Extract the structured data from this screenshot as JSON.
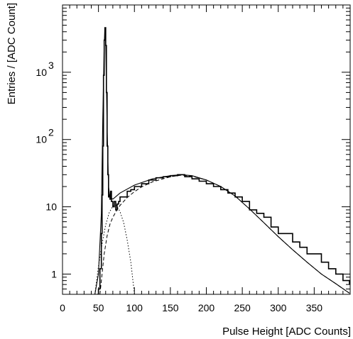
{
  "chart_data": {
    "type": "line",
    "title": "",
    "xlabel": "Pulse Height [ADC Counts]",
    "ylabel": "Entries / [ADC Count]",
    "xlim": [
      0,
      400
    ],
    "ylim": [
      0.5,
      10000
    ],
    "yscale": "log",
    "grid": false,
    "x_ticks": [
      0,
      50,
      100,
      150,
      200,
      250,
      300,
      350
    ],
    "x_tick_labels": [
      "0",
      "50",
      "100",
      "150",
      "200",
      "250",
      "300",
      "350"
    ],
    "y_ticks": [
      1,
      10,
      100,
      1000
    ],
    "y_tick_labels": [
      {
        "base": "1",
        "exp": ""
      },
      {
        "base": "10",
        "exp": ""
      },
      {
        "base": "10",
        "exp": "2"
      },
      {
        "base": "10",
        "exp": "3"
      }
    ],
    "series": [
      {
        "style": "histogram",
        "x": [
          48,
          50,
          52,
          54,
          55,
          56,
          57,
          58,
          59,
          60,
          61,
          62,
          63,
          64,
          65,
          66,
          67,
          68,
          70,
          72,
          74,
          76,
          78,
          80,
          85,
          90,
          95,
          100,
          110,
          120,
          130,
          140,
          150,
          160,
          170,
          180,
          190,
          200,
          210,
          220,
          230,
          240,
          250,
          260,
          270,
          280,
          290,
          300,
          310,
          320,
          330,
          340,
          350,
          360,
          370,
          380,
          390,
          399
        ],
        "y": [
          0.5,
          0.6,
          1.2,
          4,
          15,
          80,
          900,
          3000,
          4600,
          2500,
          500,
          80,
          30,
          14,
          15,
          13,
          17,
          12,
          10,
          12,
          9,
          11,
          12,
          14,
          14,
          17,
          18,
          20,
          22,
          25,
          27,
          28,
          29,
          30,
          28,
          26,
          24,
          22,
          20,
          18,
          16,
          14,
          12,
          9,
          8,
          7,
          5,
          4,
          4,
          3,
          2.5,
          2,
          2,
          1.5,
          1.2,
          1,
          0.8,
          0.7
        ]
      },
      {
        "style": "solid",
        "x": [
          45,
          50,
          54,
          56,
          58,
          59,
          60,
          61,
          62,
          64,
          66,
          70,
          80,
          100,
          125,
          150,
          165,
          180,
          200,
          220,
          240,
          260,
          280,
          300,
          320,
          340,
          360,
          380,
          399
        ],
        "y": [
          0.5,
          1,
          8,
          200,
          2500,
          4500,
          2800,
          700,
          150,
          20,
          14,
          13,
          16,
          21,
          26,
          29,
          30,
          29,
          25,
          20,
          14.5,
          9.3,
          5.8,
          3.6,
          2.3,
          1.5,
          1.0,
          0.72,
          0.52
        ]
      },
      {
        "style": "dashed",
        "x": [
          52,
          55,
          58,
          62,
          66,
          70,
          75,
          80,
          90,
          100,
          110,
          125,
          150,
          165,
          180,
          200,
          220,
          240,
          260,
          280,
          300,
          320,
          340,
          360,
          380,
          399
        ],
        "y": [
          0.5,
          1.0,
          2.0,
          3.7,
          5.5,
          7.0,
          8.7,
          10.5,
          13.7,
          16.8,
          19.7,
          23.5,
          28,
          29.5,
          28.5,
          25,
          20,
          14.5,
          9.3,
          5.8,
          3.6,
          2.3,
          1.5,
          1.0,
          0.72,
          0.52
        ]
      },
      {
        "style": "dotted",
        "x": [
          45,
          50,
          55,
          60,
          65,
          70,
          75,
          80,
          85,
          90,
          95,
          100
        ],
        "y": [
          0.5,
          1.3,
          2.8,
          5.4,
          8.2,
          10.3,
          10.5,
          8.5,
          5.8,
          3.2,
          1.5,
          0.5
        ]
      }
    ]
  }
}
